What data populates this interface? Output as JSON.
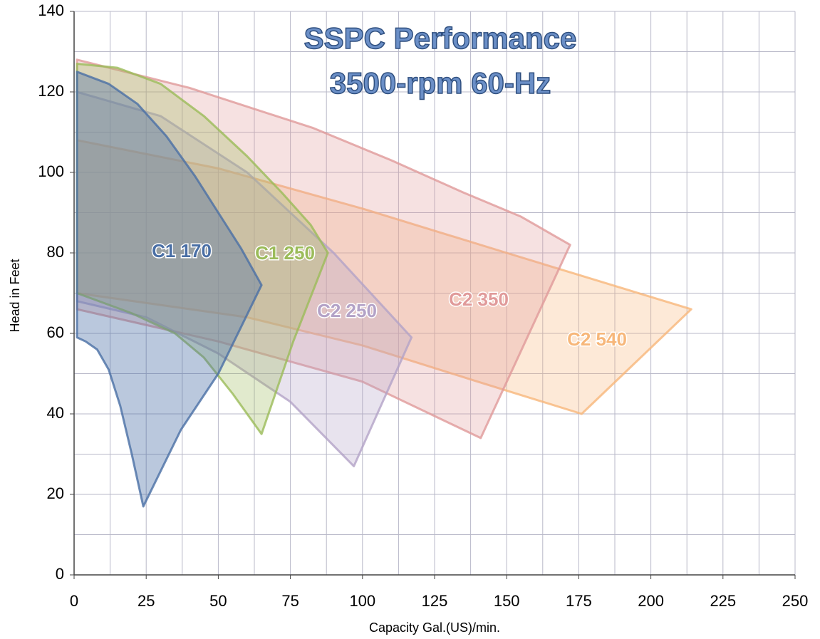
{
  "chart_data": {
    "type": "polygon",
    "title": "SSPC Performance",
    "subtitle": "3500-rpm 60-Hz",
    "x_label": "Capacity Gal.(US)/min.",
    "y_label": "Head in Feet",
    "xlim": [
      0,
      250
    ],
    "xticks": [
      0,
      25,
      50,
      75,
      100,
      125,
      150,
      175,
      200,
      225,
      250
    ],
    "ylim": [
      0,
      140
    ],
    "yticks": [
      0,
      20,
      40,
      60,
      80,
      100,
      120,
      140
    ],
    "grid": true,
    "series": [
      {
        "name": "C1 170",
        "color": "#4a6fa5",
        "x": [
          1,
          12,
          22,
          32,
          42,
          50,
          58,
          65,
          50,
          37,
          24,
          20,
          16,
          12,
          8,
          4,
          1
        ],
        "values": [
          125,
          122,
          117,
          109,
          99,
          90,
          81,
          72,
          50,
          36,
          17,
          30,
          42,
          51,
          56,
          58,
          59
        ]
      },
      {
        "name": "C1 250",
        "color": "#9bbb59",
        "x": [
          1,
          15,
          30,
          45,
          60,
          72,
          82,
          88,
          76,
          65,
          55,
          45,
          35,
          20,
          1
        ],
        "values": [
          127,
          126,
          122,
          114,
          104,
          95,
          87,
          80,
          58,
          35,
          45,
          54,
          60,
          65,
          70
        ]
      },
      {
        "name": "C2 250",
        "color": "#b3a2c7",
        "x": [
          1,
          30,
          60,
          90,
          117,
          97,
          75,
          50,
          25,
          1
        ],
        "values": [
          120,
          114,
          100,
          80,
          59,
          27,
          43,
          55,
          64,
          68
        ]
      },
      {
        "name": "C2 350",
        "color": "#e09a9a",
        "x": [
          1,
          40,
          83,
          110,
          135,
          155,
          172,
          141,
          100,
          50,
          1
        ],
        "values": [
          128,
          121,
          111,
          103,
          95,
          89,
          82,
          34,
          48,
          58,
          66
        ]
      },
      {
        "name": "C2 540",
        "color": "#f7b77a",
        "x": [
          1,
          50,
          100,
          150,
          214,
          176,
          140,
          100,
          60,
          1
        ],
        "values": [
          108,
          101,
          91,
          80,
          66,
          40,
          48,
          57,
          64,
          70
        ]
      }
    ]
  }
}
